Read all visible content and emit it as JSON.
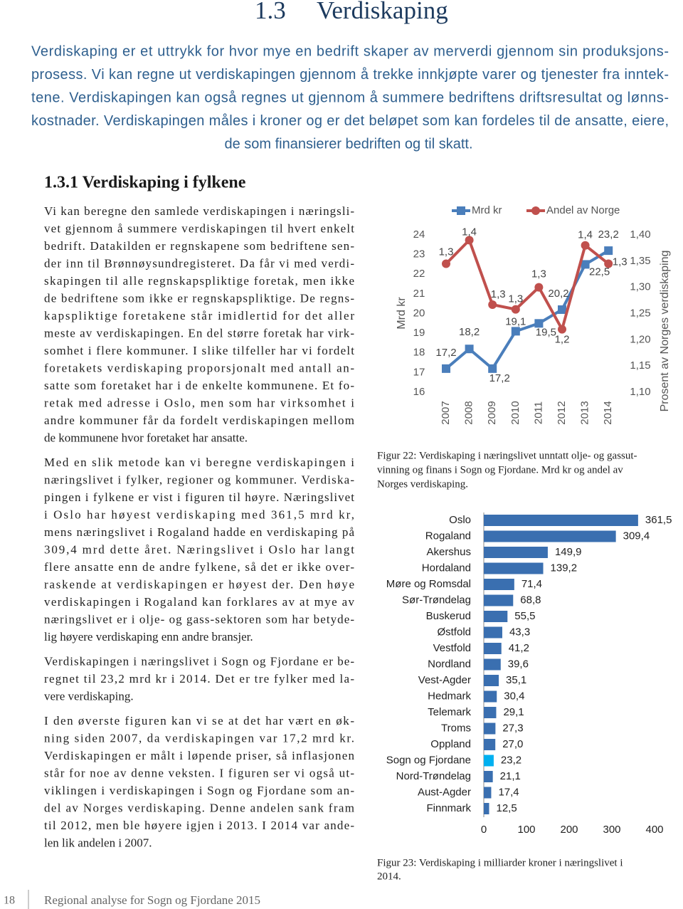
{
  "header": {
    "number": "1.3",
    "title": "Verdiskaping"
  },
  "intro": [
    "Verdiskaping er et uttrykk for hvor mye en bedrift skaper av merverdi gjennom sin produksjons-",
    "prosess. Vi kan regne ut verdiskapingen gjennom å trekke innkjøpte varer og tjenester fra inntek-",
    "tene. Verdiskapingen kan også regnes ut gjennom å summere bedriftens driftsresultat og lønns-",
    "kostnader. Verdiskapingen måles i kroner og er det beløpet som kan fordeles til de ansatte, eiere,",
    "de som finansierer bedriften og til skatt."
  ],
  "subsection": "1.3.1 Verdiskaping i fylkene",
  "paragraphs": [
    [
      "Vi kan beregne den samlede verdiskapingen i næringsli-",
      "vet gjennom å summere verdiskapingen til hvert enkelt",
      "bedrift. Datakilden er regnskapene som bedriftene sen-",
      "der inn til Brønnøysundregisteret. Da får vi med verdi-",
      "skapingen til alle regnskapspliktige foretak, men ikke",
      "de bedriftene som ikke er regnskapspliktige. De regns-",
      "kapspliktige foretakene står imidlertid for det aller",
      "meste av verdiskapingen. En del større foretak har virk-",
      "somhet i flere kommuner. I slike tilfeller har vi fordelt",
      "foretakets verdiskaping proporsjonalt med antall an-",
      "satte som foretaket har i de enkelte kommunene. Et fo-",
      "retak med adresse i Oslo, men som har virksomhet i",
      "andre kommuner får da fordelt verdiskapingen mellom",
      "de kommunene hvor foretaket har ansatte."
    ],
    [
      "Med en slik metode kan vi beregne verdiskapingen i",
      "næringslivet i fylker, regioner og kommuner. Verdiska-",
      "pingen i fylkene er vist i figuren til høyre. Næringslivet",
      "i Oslo har høyest verdiskaping med 361,5 mrd kr,",
      "mens næringslivet i Rogaland hadde en verdiskaping på",
      "309,4 mrd dette året. Næringslivet i Oslo har langt",
      "flere ansatte enn de andre fylkene, så det er ikke over-",
      "raskende at verdiskapingen er høyest der. Den høye",
      "verdiskapingen i Rogaland kan forklares av at mye av",
      "næringslivet er i olje- og gass-sektoren som har betyde-",
      "lig høyere verdiskaping enn andre bransjer."
    ],
    [
      "Verdiskapingen i næringslivet i Sogn og Fjordane er be-",
      "regnet til 23,2 mrd kr i 2014. Det er tre fylker med la-",
      "vere verdiskaping."
    ],
    [
      "I den øverste figuren kan vi se at det har vært en øk-",
      "ning siden 2007, da verdiskapingen var 17,2 mrd kr.",
      "Verdiskapingen er målt i løpende priser, så inflasjonen",
      "står for noe av denne veksten. I figuren ser vi også ut-",
      "viklingen i verdiskapingen i Sogn og Fjordane som an-",
      "del av Norges verdiskaping. Denne andelen sank fram",
      "til 2012, men ble høyere igjen i 2013. I 2014 var ande-",
      "len lik andelen i 2007."
    ]
  ],
  "chart_data": [
    {
      "type": "line",
      "categories": [
        "2007",
        "2008",
        "2009",
        "2010",
        "2011",
        "2012",
        "2013",
        "2014"
      ],
      "ylabel": "Mrd kr",
      "y2label": "Prosent av Norges verdiskaping",
      "ylim": [
        16,
        24
      ],
      "yticks": [
        16,
        17,
        18,
        19,
        20,
        21,
        22,
        23,
        24
      ],
      "y2lim": [
        1.1,
        1.4
      ],
      "y2ticks": [
        {
          "value": 1.1,
          "label": "1,10"
        },
        {
          "value": 1.15,
          "label": "1,15"
        },
        {
          "value": 1.2,
          "label": "1,20"
        },
        {
          "value": 1.25,
          "label": "1,25"
        },
        {
          "value": 1.3,
          "label": "1,30"
        },
        {
          "value": 1.35,
          "label": "1,35"
        },
        {
          "value": 1.4,
          "label": "1,40"
        }
      ],
      "legend": "top",
      "series": [
        {
          "name": "Mrd kr",
          "color": "#4a7ebb",
          "values": [
            17.2,
            18.2,
            17.2,
            19.1,
            19.5,
            20.2,
            22.5,
            23.2
          ],
          "value_labels": [
            "17,2",
            "18,2",
            "17,2",
            "19,1",
            "19,5",
            "20,2",
            "22,5",
            "23,2"
          ]
        },
        {
          "name": "Andel av Norge",
          "color": "#c0504d",
          "axis": "y2",
          "values": [
            1.345,
            1.39,
            1.267,
            1.258,
            1.3,
            1.22,
            1.38,
            1.345
          ],
          "value_labels": [
            "1,3",
            "1,4",
            "1,3",
            "1,3",
            "1,3",
            "1,2",
            "1,4",
            "1,3"
          ]
        }
      ]
    },
    {
      "type": "barh",
      "categories": [
        "Oslo",
        "Rogaland",
        "Akershus",
        "Hordaland",
        "Møre og Romsdal",
        "Sør-Trøndelag",
        "Buskerud",
        "Østfold",
        "Vestfold",
        "Nordland",
        "Vest-Agder",
        "Hedmark",
        "Telemark",
        "Troms",
        "Oppland",
        "Sogn og Fjordane",
        "Nord-Trøndelag",
        "Aust-Agder",
        "Finnmark"
      ],
      "values": [
        361.5,
        309.4,
        149.9,
        139.2,
        71.4,
        68.8,
        55.5,
        43.3,
        41.2,
        39.6,
        35.1,
        30.4,
        29.1,
        27.3,
        27.0,
        23.2,
        21.1,
        17.4,
        12.5
      ],
      "value_labels": [
        "361,5",
        "309,4",
        "149,9",
        "139,2",
        "71,4",
        "68,8",
        "55,5",
        "43,3",
        "41,2",
        "39,6",
        "35,1",
        "30,4",
        "29,1",
        "27,3",
        "27,0",
        "23,2",
        "21,1",
        "17,4",
        "12,5"
      ],
      "colors": [
        "#3a6fb0",
        "#3a6fb0",
        "#3a6fb0",
        "#3a6fb0",
        "#3a6fb0",
        "#3a6fb0",
        "#3a6fb0",
        "#3a6fb0",
        "#3a6fb0",
        "#3a6fb0",
        "#3a6fb0",
        "#3a6fb0",
        "#3a6fb0",
        "#3a6fb0",
        "#3a6fb0",
        "#00b0f0",
        "#3a6fb0",
        "#3a6fb0",
        "#3a6fb0"
      ],
      "xlim": [
        0,
        400
      ],
      "xticks": [
        0,
        100,
        200,
        300,
        400
      ]
    }
  ],
  "captions": [
    [
      "Figur 22: Verdiskaping i næringslivet unntatt olje- og gassut-",
      "vinning og finans i Sogn og Fjordane. Mrd kr og andel av",
      "Norges verdiskaping."
    ],
    [
      "Figur 23: Verdiskaping i milliarder kroner i næringslivet i",
      "2014."
    ]
  ],
  "footer": {
    "page": "18",
    "title": "Regional analyse for Sogn og Fjordane 2015"
  }
}
